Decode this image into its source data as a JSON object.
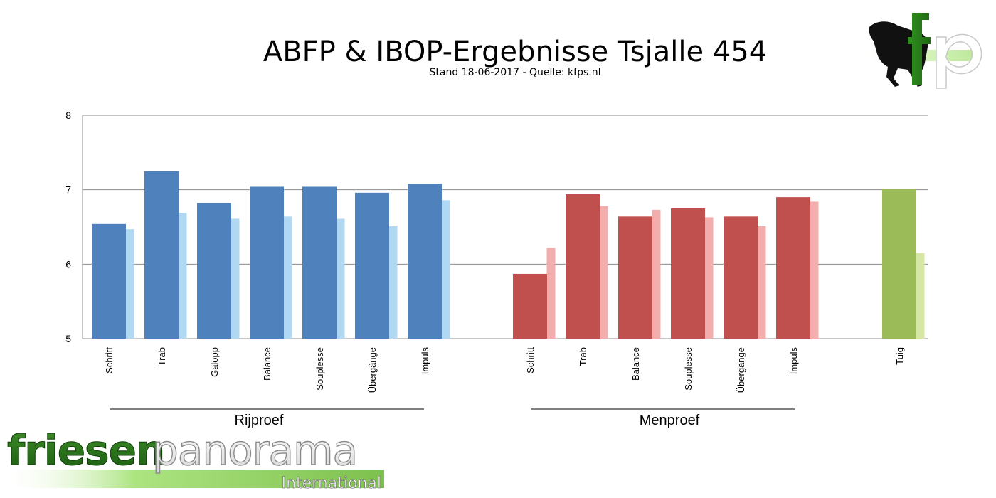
{
  "chart_data": {
    "type": "bar",
    "title": "ABFP & IBOP-Ergebnisse Tsjalle 454",
    "subtitle": "Stand 18-06-2017 - Quelle: kfps.nl",
    "ylim": [
      5,
      8
    ],
    "yticks": [
      5,
      6,
      7,
      8
    ],
    "grid": true,
    "groups": [
      {
        "name": "Rijproef",
        "color": "#4f81bd",
        "comparison_color": "#b0d8f2",
        "categories": [
          "Schritt",
          "Trab",
          "Galopp",
          "Balance",
          "Souplesse",
          "Übergänge",
          "Impuls"
        ],
        "values": [
          6.54,
          7.25,
          6.82,
          7.04,
          7.04,
          6.96,
          7.08
        ],
        "comparison_values": [
          6.47,
          6.69,
          6.61,
          6.64,
          6.61,
          6.51,
          6.86
        ]
      },
      {
        "name": "Menproef",
        "color": "#c0504d",
        "comparison_color": "#f4adad",
        "categories": [
          "Schritt",
          "Trab",
          "Balance",
          "Souplesse",
          "Übergänge",
          "Impuls"
        ],
        "values": [
          5.87,
          6.94,
          6.64,
          6.75,
          6.64,
          6.9
        ],
        "comparison_values": [
          6.22,
          6.78,
          6.73,
          6.63,
          6.51,
          6.84
        ]
      },
      {
        "name": "",
        "color": "#9bbb59",
        "comparison_color": "#d6e6a4",
        "categories": [
          "Tuig"
        ],
        "values": [
          7.01
        ],
        "comparison_values": [
          6.15
        ]
      }
    ]
  },
  "logos": {
    "top_right": "fp",
    "bottom_left_main_a": "friesen",
    "bottom_left_main_b": "panorama",
    "bottom_left_sub": "International"
  }
}
